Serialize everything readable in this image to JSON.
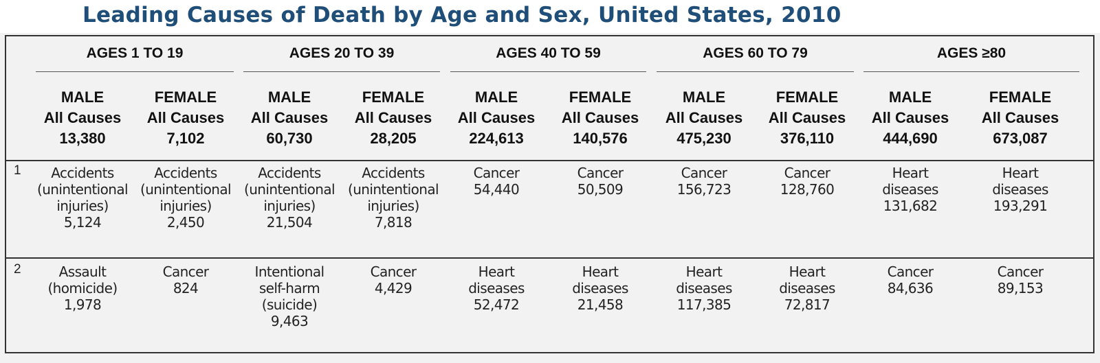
{
  "title": "Leading Causes of Death by Age and Sex, United States, 2010",
  "age_groups": [
    "AGES 1 TO 19",
    "AGES 20 TO 39",
    "AGES 40 TO 59",
    "AGES 60 TO 79",
    "AGES ≥80"
  ],
  "columns": [
    {
      "sex": "MALE",
      "label": "All Causes",
      "total": "13,380"
    },
    {
      "sex": "FEMALE",
      "label": "All Causes",
      "total": "7,102"
    },
    {
      "sex": "MALE",
      "label": "All Causes",
      "total": "60,730"
    },
    {
      "sex": "FEMALE",
      "label": "All Causes",
      "total": "28,205"
    },
    {
      "sex": "MALE",
      "label": "All Causes",
      "total": "224,613"
    },
    {
      "sex": "FEMALE",
      "label": "All Causes",
      "total": "140,576"
    },
    {
      "sex": "MALE",
      "label": "All Causes",
      "total": "475,230"
    },
    {
      "sex": "FEMALE",
      "label": "All Causes",
      "total": "376,110"
    },
    {
      "sex": "MALE",
      "label": "All Causes",
      "total": "444,690"
    },
    {
      "sex": "FEMALE",
      "label": "All Causes",
      "total": "673,087"
    }
  ],
  "rows": [
    {
      "rank": "1",
      "cells": [
        [
          "Accidents",
          "(unintentional",
          "injuries)",
          "5,124"
        ],
        [
          "Accidents",
          "(unintentional",
          "injuries)",
          "2,450"
        ],
        [
          "Accidents",
          "(unintentional",
          "injuries)",
          "21,504"
        ],
        [
          "Accidents",
          "(unintentional",
          "injuries)",
          "7,818"
        ],
        [
          "Cancer",
          "54,440"
        ],
        [
          "Cancer",
          "50,509"
        ],
        [
          "Cancer",
          "156,723"
        ],
        [
          "Cancer",
          "128,760"
        ],
        [
          "Heart",
          "diseases",
          "131,682"
        ],
        [
          "Heart",
          "diseases",
          "193,291"
        ]
      ]
    },
    {
      "rank": "2",
      "cells": [
        [
          "Assault",
          "(homicide)",
          "1,978"
        ],
        [
          "Cancer",
          "824"
        ],
        [
          "Intentional",
          "self-harm",
          "(suicide)",
          "9,463"
        ],
        [
          "Cancer",
          "4,429"
        ],
        [
          "Heart",
          "diseases",
          "52,472"
        ],
        [
          "Heart",
          "diseases",
          "21,458"
        ],
        [
          "Heart",
          "diseases",
          "117,385"
        ],
        [
          "Heart",
          "diseases",
          "72,817"
        ],
        [
          "Cancer",
          "84,636"
        ],
        [
          "Cancer",
          "89,153"
        ]
      ]
    }
  ]
}
